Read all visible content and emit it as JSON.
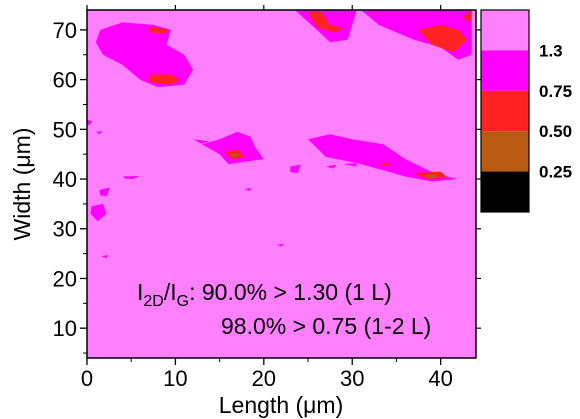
{
  "chart_data": {
    "type": "heatmap",
    "title": "",
    "xlabel": "Length (μm)",
    "ylabel": "Width (μm)",
    "xlim": [
      0,
      44
    ],
    "ylim": [
      4,
      74
    ],
    "x_ticks": [
      0,
      10,
      20,
      30,
      40
    ],
    "y_ticks": [
      10,
      20,
      30,
      40,
      50,
      60,
      70
    ],
    "colorbar": {
      "levels": [
        {
          "label": "",
          "color": "#ff80ff"
        },
        {
          "label": "1.3",
          "color": "#ff00ff"
        },
        {
          "label": "0.75",
          "color": "#ff2222"
        },
        {
          "label": "0.50",
          "color": "#b85a12"
        },
        {
          "label": "0.25",
          "color": "#000000"
        }
      ]
    },
    "annotation": {
      "line1_main": "I",
      "line1_sub1": "2D",
      "line1_mid": "/I",
      "line1_sub2": "G",
      "line1_rest": ": 90.0% > 1.30 (1 L)",
      "line2": "98.0% > 0.75 (1-2 L)"
    },
    "regions": [
      {
        "level": 1.3,
        "points": [
          [
            1.5,
            70
          ],
          [
            4,
            71.5
          ],
          [
            7.5,
            71
          ],
          [
            9.5,
            70
          ],
          [
            9,
            67
          ],
          [
            11,
            65
          ],
          [
            12,
            62
          ],
          [
            11,
            59
          ],
          [
            8,
            58.5
          ],
          [
            6,
            60
          ],
          [
            4,
            63
          ],
          [
            1.8,
            65
          ],
          [
            1,
            67.5
          ]
        ]
      },
      {
        "level": 0.75,
        "points": [
          [
            7,
            70.5
          ],
          [
            9.2,
            70.2
          ],
          [
            8.8,
            69.3
          ],
          [
            7.2,
            69.5
          ]
        ]
      },
      {
        "level": 0.75,
        "points": [
          [
            7,
            61
          ],
          [
            9.5,
            61
          ],
          [
            10.5,
            60
          ],
          [
            9.5,
            59
          ],
          [
            7,
            59.5
          ]
        ]
      },
      {
        "level": 1.3,
        "points": [
          [
            23.5,
            74
          ],
          [
            30.5,
            74
          ],
          [
            30,
            71
          ],
          [
            29.5,
            68
          ],
          [
            27.5,
            67.5
          ],
          [
            26,
            70
          ]
        ]
      },
      {
        "level": 0.75,
        "points": [
          [
            25,
            73.5
          ],
          [
            26.5,
            73.6
          ],
          [
            27.5,
            71
          ],
          [
            29,
            70.4
          ],
          [
            28,
            69.5
          ],
          [
            26,
            70.5
          ]
        ]
      },
      {
        "level": 1.3,
        "points": [
          [
            31,
            74
          ],
          [
            43.5,
            74
          ],
          [
            43.5,
            65
          ],
          [
            42,
            64
          ],
          [
            40,
            66.5
          ],
          [
            37,
            68
          ],
          [
            33,
            71
          ]
        ]
      },
      {
        "level": 0.75,
        "points": [
          [
            37.5,
            70
          ],
          [
            40,
            71
          ],
          [
            42,
            70
          ],
          [
            43,
            68
          ],
          [
            41.5,
            65.5
          ],
          [
            39,
            67
          ]
        ]
      },
      {
        "level": 0.75,
        "points": [
          [
            43.5,
            74
          ],
          [
            43.5,
            71.5
          ],
          [
            42.5,
            72.5
          ]
        ]
      },
      {
        "level": 1.3,
        "points": [
          [
            13,
            47
          ],
          [
            15,
            48
          ],
          [
            17,
            49.5
          ],
          [
            18.5,
            48.5
          ],
          [
            19,
            46.5
          ],
          [
            20,
            44
          ],
          [
            18,
            43.5
          ],
          [
            16,
            43
          ],
          [
            15,
            45
          ]
        ]
      },
      {
        "level": 0.75,
        "points": [
          [
            15.5,
            45.5
          ],
          [
            17,
            46
          ],
          [
            17.8,
            44.5
          ],
          [
            16.5,
            44
          ]
        ]
      },
      {
        "level": 0.5,
        "points": [
          [
            16.2,
            45
          ],
          [
            17.2,
            45.2
          ],
          [
            17.1,
            44.6
          ],
          [
            16.4,
            44.5
          ]
        ]
      },
      {
        "level": 1.3,
        "points": [
          [
            25,
            48
          ],
          [
            27.5,
            49
          ],
          [
            30,
            48
          ],
          [
            33.5,
            47
          ],
          [
            36,
            44
          ],
          [
            39.5,
            41
          ],
          [
            42,
            40
          ],
          [
            39,
            39.5
          ],
          [
            36,
            40.5
          ],
          [
            31,
            43
          ],
          [
            27,
            44.5
          ]
        ]
      },
      {
        "level": 0.75,
        "points": [
          [
            37,
            41.2
          ],
          [
            40,
            41.5
          ],
          [
            40.8,
            40.3
          ],
          [
            38.5,
            40
          ]
        ]
      },
      {
        "level": 0.5,
        "points": [
          [
            38.3,
            40.8
          ],
          [
            39.6,
            40.9
          ],
          [
            39.4,
            40.2
          ],
          [
            38.4,
            40.3
          ]
        ]
      },
      {
        "level": 0.75,
        "points": [
          [
            33,
            43
          ],
          [
            34.2,
            43.4
          ],
          [
            34,
            42.6
          ]
        ]
      },
      {
        "level": 1.3,
        "points": [
          [
            0.5,
            34.5
          ],
          [
            1.8,
            35
          ],
          [
            2.2,
            33
          ],
          [
            1.2,
            31.5
          ],
          [
            0.4,
            33
          ]
        ]
      },
      {
        "level": 1.3,
        "points": [
          [
            1.4,
            37.8
          ],
          [
            2.6,
            38.3
          ],
          [
            2.2,
            36.5
          ],
          [
            1.5,
            36.7
          ]
        ]
      },
      {
        "level": 1.3,
        "points": [
          [
            0,
            52
          ],
          [
            0.6,
            51.6
          ],
          [
            0.2,
            50.8
          ],
          [
            0,
            51
          ]
        ]
      },
      {
        "level": 1.3,
        "points": [
          [
            1,
            49.5
          ],
          [
            1.8,
            49.6
          ],
          [
            1.4,
            49
          ]
        ]
      },
      {
        "level": 1.3,
        "points": [
          [
            4,
            40.5
          ],
          [
            6,
            40.6
          ],
          [
            5.2,
            40
          ],
          [
            4.3,
            40.1
          ]
        ]
      },
      {
        "level": 1.3,
        "points": [
          [
            12,
            48
          ],
          [
            13.8,
            47.6
          ],
          [
            13,
            47.1
          ]
        ]
      },
      {
        "level": 1.3,
        "points": [
          [
            23,
            42.5
          ],
          [
            24.2,
            42.9
          ],
          [
            23.8,
            41.2
          ],
          [
            23,
            41.4
          ]
        ]
      },
      {
        "level": 1.3,
        "points": [
          [
            27,
            42.5
          ],
          [
            28.2,
            42.9
          ],
          [
            27.9,
            42.1
          ]
        ]
      },
      {
        "level": 1.3,
        "points": [
          [
            17.8,
            38
          ],
          [
            18.6,
            38.2
          ],
          [
            18.4,
            37.6
          ]
        ]
      },
      {
        "level": 1.3,
        "points": [
          [
            1.6,
            24.5
          ],
          [
            2.4,
            24.7
          ],
          [
            2.2,
            24.1
          ]
        ]
      },
      {
        "level": 1.3,
        "points": [
          [
            21.5,
            26.8
          ],
          [
            22.3,
            27
          ],
          [
            22,
            26.4
          ]
        ]
      },
      {
        "level": 1.3,
        "points": [
          [
            29,
            43
          ],
          [
            30.5,
            43.2
          ],
          [
            30.5,
            42.5
          ]
        ]
      }
    ]
  }
}
